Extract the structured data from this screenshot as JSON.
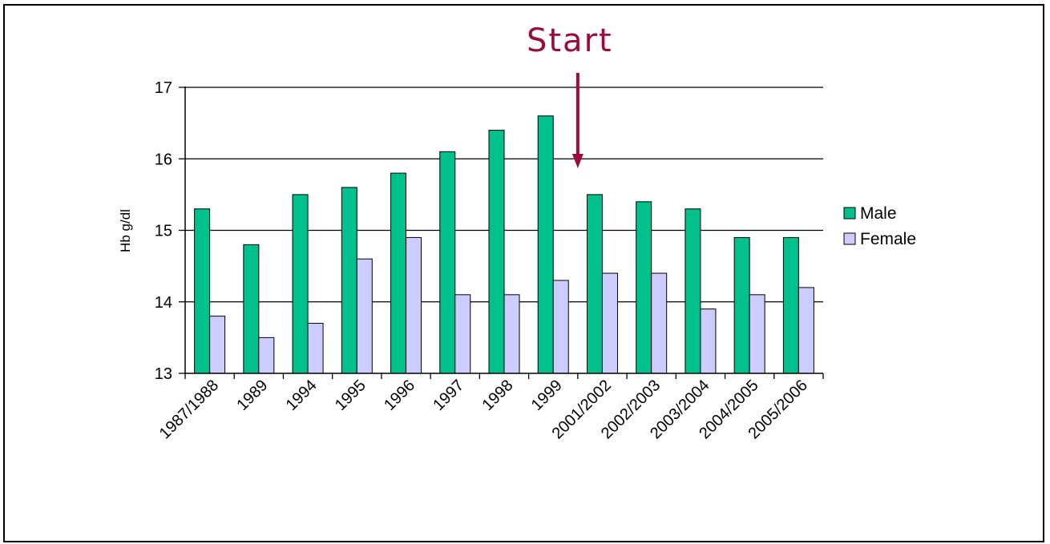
{
  "chart_data": {
    "type": "bar",
    "title": "",
    "xlabel": "",
    "ylabel": "Hb g/dl",
    "ylim": [
      13,
      17
    ],
    "yticks": [
      13,
      14,
      15,
      16,
      17
    ],
    "grid": true,
    "legend_position": "right",
    "categories": [
      "1987/1988",
      "1989",
      "1994",
      "1995",
      "1996",
      "1997",
      "1998",
      "1999",
      "2001/2002",
      "2002/2003",
      "2003/2004",
      "2004/2005",
      "2005/2006"
    ],
    "series": [
      {
        "name": "Male",
        "color": "#00C08B",
        "values": [
          15.3,
          14.8,
          15.5,
          15.6,
          15.8,
          16.1,
          16.4,
          16.6,
          15.5,
          15.4,
          15.3,
          14.9,
          14.9
        ]
      },
      {
        "name": "Female",
        "color": "#CCCCFF",
        "values": [
          13.8,
          13.5,
          13.7,
          14.6,
          14.9,
          14.1,
          14.1,
          14.3,
          14.4,
          14.4,
          13.9,
          14.1,
          14.2
        ]
      }
    ],
    "annotations": [
      {
        "text": "Start",
        "points_to_boundary_after": "1999",
        "color": "#9B0B3C"
      }
    ]
  }
}
